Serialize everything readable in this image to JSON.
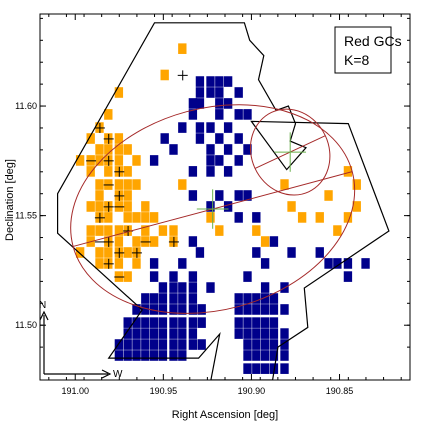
{
  "chart_data": {
    "type": "heatmap",
    "title": "",
    "xlabel": "Right Ascension [deg]",
    "ylabel": "Declination [deg]",
    "xlim": [
      191.02,
      190.81
    ],
    "ylim": [
      11.475,
      11.642
    ],
    "xaxis_reversed": true,
    "x_ticks": [
      "191.00",
      "190.95",
      "190.90",
      "190.85"
    ],
    "y_ticks": [
      "11.50",
      "11.55",
      "11.60"
    ],
    "legend": {
      "lines": [
        "Red GCs",
        "K=8"
      ],
      "placement": "top-right"
    },
    "colors": {
      "orange": "#FFA500",
      "navy": "#00008B",
      "ellipse": "#A52A2A",
      "cross": "#6AB04C"
    },
    "cell_size_deg": 0.0052,
    "orange_cells": [
      [
        190.939,
        11.626
      ],
      [
        190.949,
        11.614
      ],
      [
        190.975,
        11.606
      ],
      [
        190.981,
        11.596
      ],
      [
        190.986,
        11.59
      ],
      [
        190.991,
        11.585
      ],
      [
        190.981,
        11.585
      ],
      [
        190.975,
        11.585
      ],
      [
        190.986,
        11.58
      ],
      [
        190.981,
        11.58
      ],
      [
        190.975,
        11.58
      ],
      [
        190.97,
        11.58
      ],
      [
        190.997,
        11.575
      ],
      [
        190.991,
        11.575
      ],
      [
        190.986,
        11.575
      ],
      [
        190.981,
        11.575
      ],
      [
        190.975,
        11.575
      ],
      [
        190.965,
        11.575
      ],
      [
        190.991,
        11.57
      ],
      [
        190.981,
        11.57
      ],
      [
        190.975,
        11.57
      ],
      [
        190.97,
        11.57
      ],
      [
        190.986,
        11.564
      ],
      [
        190.981,
        11.564
      ],
      [
        190.975,
        11.564
      ],
      [
        190.97,
        11.564
      ],
      [
        190.965,
        11.564
      ],
      [
        190.986,
        11.559
      ],
      [
        190.975,
        11.559
      ],
      [
        190.97,
        11.559
      ],
      [
        190.991,
        11.554
      ],
      [
        190.986,
        11.554
      ],
      [
        190.981,
        11.554
      ],
      [
        190.975,
        11.554
      ],
      [
        190.97,
        11.554
      ],
      [
        190.96,
        11.554
      ],
      [
        190.986,
        11.549
      ],
      [
        190.981,
        11.549
      ],
      [
        190.97,
        11.549
      ],
      [
        190.965,
        11.549
      ],
      [
        190.96,
        11.549
      ],
      [
        190.955,
        11.549
      ],
      [
        190.991,
        11.543
      ],
      [
        190.986,
        11.543
      ],
      [
        190.981,
        11.543
      ],
      [
        190.975,
        11.543
      ],
      [
        190.97,
        11.543
      ],
      [
        190.96,
        11.543
      ],
      [
        190.95,
        11.543
      ],
      [
        190.944,
        11.543
      ],
      [
        190.991,
        11.538
      ],
      [
        190.981,
        11.538
      ],
      [
        190.975,
        11.538
      ],
      [
        190.965,
        11.538
      ],
      [
        190.96,
        11.538
      ],
      [
        190.955,
        11.538
      ],
      [
        190.944,
        11.538
      ],
      [
        190.997,
        11.533
      ],
      [
        190.986,
        11.533
      ],
      [
        190.981,
        11.533
      ],
      [
        190.975,
        11.533
      ],
      [
        190.97,
        11.533
      ],
      [
        190.965,
        11.533
      ],
      [
        190.986,
        11.528
      ],
      [
        190.981,
        11.528
      ],
      [
        190.975,
        11.528
      ],
      [
        190.965,
        11.528
      ],
      [
        190.975,
        11.522
      ],
      [
        190.97,
        11.522
      ],
      [
        190.939,
        11.564
      ],
      [
        190.923,
        11.549
      ],
      [
        190.918,
        11.543
      ],
      [
        190.897,
        11.543
      ],
      [
        190.892,
        11.538
      ],
      [
        190.881,
        11.564
      ],
      [
        190.877,
        11.554
      ],
      [
        190.871,
        11.549
      ],
      [
        190.861,
        11.549
      ],
      [
        190.856,
        11.559
      ],
      [
        190.851,
        11.543
      ],
      [
        190.845,
        11.549
      ],
      [
        190.84,
        11.554
      ],
      [
        190.84,
        11.564
      ],
      [
        190.845,
        11.57
      ]
    ],
    "navy_cells": [
      [
        190.929,
        11.611
      ],
      [
        190.923,
        11.611
      ],
      [
        190.918,
        11.611
      ],
      [
        190.913,
        11.611
      ],
      [
        190.929,
        11.606
      ],
      [
        190.923,
        11.606
      ],
      [
        190.918,
        11.606
      ],
      [
        190.907,
        11.606
      ],
      [
        190.933,
        11.601
      ],
      [
        190.929,
        11.601
      ],
      [
        190.918,
        11.601
      ],
      [
        190.913,
        11.601
      ],
      [
        190.933,
        11.596
      ],
      [
        190.918,
        11.596
      ],
      [
        190.907,
        11.596
      ],
      [
        190.902,
        11.596
      ],
      [
        190.939,
        11.59
      ],
      [
        190.929,
        11.59
      ],
      [
        190.923,
        11.59
      ],
      [
        190.913,
        11.59
      ],
      [
        190.949,
        11.585
      ],
      [
        190.929,
        11.585
      ],
      [
        190.918,
        11.585
      ],
      [
        190.907,
        11.585
      ],
      [
        190.944,
        11.58
      ],
      [
        190.923,
        11.58
      ],
      [
        190.913,
        11.58
      ],
      [
        190.902,
        11.58
      ],
      [
        190.955,
        11.575
      ],
      [
        190.923,
        11.575
      ],
      [
        190.918,
        11.575
      ],
      [
        190.907,
        11.575
      ],
      [
        190.933,
        11.57
      ],
      [
        190.923,
        11.57
      ],
      [
        190.913,
        11.57
      ],
      [
        190.933,
        11.559
      ],
      [
        190.918,
        11.559
      ],
      [
        190.907,
        11.559
      ],
      [
        190.902,
        11.559
      ],
      [
        190.923,
        11.554
      ],
      [
        190.913,
        11.554
      ],
      [
        190.907,
        11.549
      ],
      [
        190.897,
        11.549
      ],
      [
        190.887,
        11.538
      ],
      [
        190.877,
        11.533
      ],
      [
        190.861,
        11.533
      ],
      [
        190.856,
        11.528
      ],
      [
        190.851,
        11.528
      ],
      [
        190.845,
        11.528
      ],
      [
        190.845,
        11.522
      ],
      [
        190.835,
        11.528
      ],
      [
        190.897,
        11.533
      ],
      [
        190.892,
        11.528
      ],
      [
        190.902,
        11.522
      ],
      [
        190.892,
        11.517
      ],
      [
        190.881,
        11.517
      ],
      [
        190.933,
        11.538
      ],
      [
        190.929,
        11.533
      ],
      [
        190.939,
        11.528
      ],
      [
        190.933,
        11.522
      ],
      [
        190.944,
        11.522
      ],
      [
        190.955,
        11.528
      ],
      [
        190.955,
        11.522
      ],
      [
        190.95,
        11.517
      ],
      [
        190.944,
        11.517
      ],
      [
        190.939,
        11.517
      ],
      [
        190.933,
        11.517
      ],
      [
        190.923,
        11.517
      ],
      [
        190.96,
        11.512
      ],
      [
        190.955,
        11.512
      ],
      [
        190.95,
        11.512
      ],
      [
        190.944,
        11.512
      ],
      [
        190.939,
        11.512
      ],
      [
        190.933,
        11.512
      ],
      [
        190.965,
        11.507
      ],
      [
        190.96,
        11.507
      ],
      [
        190.955,
        11.507
      ],
      [
        190.95,
        11.507
      ],
      [
        190.944,
        11.507
      ],
      [
        190.939,
        11.507
      ],
      [
        190.933,
        11.507
      ],
      [
        190.928,
        11.507
      ],
      [
        190.97,
        11.501
      ],
      [
        190.965,
        11.501
      ],
      [
        190.96,
        11.501
      ],
      [
        190.955,
        11.501
      ],
      [
        190.95,
        11.501
      ],
      [
        190.944,
        11.501
      ],
      [
        190.939,
        11.501
      ],
      [
        190.933,
        11.501
      ],
      [
        190.928,
        11.501
      ],
      [
        190.97,
        11.496
      ],
      [
        190.965,
        11.496
      ],
      [
        190.96,
        11.496
      ],
      [
        190.955,
        11.496
      ],
      [
        190.95,
        11.496
      ],
      [
        190.944,
        11.496
      ],
      [
        190.939,
        11.496
      ],
      [
        190.933,
        11.496
      ],
      [
        190.975,
        11.491
      ],
      [
        190.97,
        11.491
      ],
      [
        190.965,
        11.491
      ],
      [
        190.96,
        11.491
      ],
      [
        190.955,
        11.491
      ],
      [
        190.95,
        11.491
      ],
      [
        190.944,
        11.491
      ],
      [
        190.939,
        11.491
      ],
      [
        190.933,
        11.491
      ],
      [
        190.928,
        11.491
      ],
      [
        190.975,
        11.486
      ],
      [
        190.97,
        11.486
      ],
      [
        190.965,
        11.486
      ],
      [
        190.96,
        11.486
      ],
      [
        190.955,
        11.486
      ],
      [
        190.95,
        11.486
      ],
      [
        190.944,
        11.486
      ],
      [
        190.939,
        11.486
      ],
      [
        190.907,
        11.512
      ],
      [
        190.902,
        11.512
      ],
      [
        190.897,
        11.512
      ],
      [
        190.892,
        11.512
      ],
      [
        190.887,
        11.512
      ],
      [
        190.907,
        11.507
      ],
      [
        190.902,
        11.507
      ],
      [
        190.897,
        11.507
      ],
      [
        190.892,
        11.507
      ],
      [
        190.887,
        11.507
      ],
      [
        190.881,
        11.507
      ],
      [
        190.907,
        11.501
      ],
      [
        190.902,
        11.501
      ],
      [
        190.897,
        11.501
      ],
      [
        190.892,
        11.501
      ],
      [
        190.887,
        11.501
      ],
      [
        190.907,
        11.496
      ],
      [
        190.902,
        11.496
      ],
      [
        190.897,
        11.496
      ],
      [
        190.892,
        11.496
      ],
      [
        190.887,
        11.496
      ],
      [
        190.881,
        11.496
      ],
      [
        190.902,
        11.491
      ],
      [
        190.897,
        11.491
      ],
      [
        190.892,
        11.491
      ],
      [
        190.887,
        11.491
      ],
      [
        190.881,
        11.491
      ],
      [
        190.902,
        11.486
      ],
      [
        190.897,
        11.486
      ],
      [
        190.892,
        11.486
      ],
      [
        190.887,
        11.486
      ],
      [
        190.881,
        11.486
      ],
      [
        190.902,
        11.48
      ],
      [
        190.897,
        11.48
      ],
      [
        190.892,
        11.48
      ],
      [
        190.887,
        11.48
      ],
      [
        190.881,
        11.48
      ]
    ],
    "marked_cells": [
      [
        190.986,
        11.59
      ],
      [
        190.981,
        11.585
      ],
      [
        190.991,
        11.575
      ],
      [
        190.981,
        11.575
      ],
      [
        190.975,
        11.57
      ],
      [
        190.981,
        11.564
      ],
      [
        190.975,
        11.559
      ],
      [
        190.981,
        11.554
      ],
      [
        190.975,
        11.554
      ],
      [
        190.986,
        11.549
      ],
      [
        190.97,
        11.543
      ],
      [
        190.986,
        11.538
      ],
      [
        190.981,
        11.538
      ],
      [
        190.975,
        11.533
      ],
      [
        190.96,
        11.538
      ],
      [
        190.965,
        11.533
      ],
      [
        190.981,
        11.528
      ],
      [
        190.975,
        11.522
      ],
      [
        190.944,
        11.538
      ],
      [
        190.939,
        11.614
      ]
    ],
    "footprint_polygon": [
      [
        191.01,
        11.56
      ],
      [
        190.955,
        11.638
      ],
      [
        190.904,
        11.638
      ],
      [
        190.901,
        11.63
      ],
      [
        190.893,
        11.623
      ],
      [
        190.896,
        11.612
      ],
      [
        190.886,
        11.598
      ],
      [
        190.879,
        11.6
      ],
      [
        190.875,
        11.592
      ],
      [
        190.878,
        11.584
      ],
      [
        190.869,
        11.581
      ],
      [
        190.88,
        11.571
      ],
      [
        190.9,
        11.593
      ],
      [
        190.845,
        11.592
      ],
      [
        190.822,
        11.543
      ],
      [
        190.87,
        11.517
      ],
      [
        190.868,
        11.499
      ],
      [
        190.885,
        11.49
      ],
      [
        190.888,
        11.475
      ],
      [
        190.923,
        11.475
      ],
      [
        190.918,
        11.496
      ],
      [
        190.93,
        11.485
      ],
      [
        190.981,
        11.485
      ],
      [
        190.962,
        11.507
      ],
      [
        191.01,
        11.542
      ]
    ],
    "ellipses": [
      {
        "center": [
          190.922,
          11.553
        ],
        "semi_axes_deg": [
          0.082,
          0.046
        ],
        "angle_deg": -15
      },
      {
        "center": [
          190.878,
          11.579
        ],
        "semi_axes_deg": [
          0.022,
          0.02
        ],
        "angle_deg": -25
      }
    ],
    "crosses": [
      {
        "center": [
          190.922,
          11.553
        ],
        "size_deg": 0.009
      },
      {
        "center": [
          190.878,
          11.579
        ],
        "size_deg": 0.009
      }
    ],
    "compass": {
      "north_label": "N",
      "west_label": "W"
    }
  }
}
